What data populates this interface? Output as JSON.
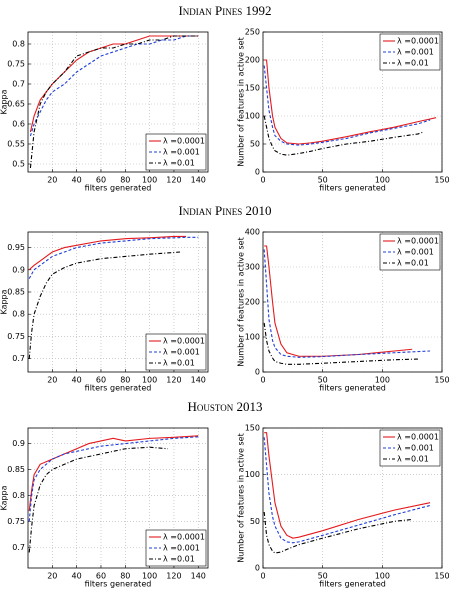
{
  "headings": [
    "Indian Pines 1992",
    "Indian Pines 2010",
    "Houston 2013"
  ],
  "chart_data": [
    {
      "type": "line",
      "x_label": "filters generated",
      "y_label": "Kappa",
      "xlim": [
        0,
        148
      ],
      "ylim": [
        0.48,
        0.83
      ],
      "xticks": [
        20,
        40,
        60,
        80,
        100,
        120,
        140
      ],
      "yticks": [
        0.5,
        0.55,
        0.6,
        0.65,
        0.7,
        0.75,
        0.8
      ],
      "grid": true,
      "legend": "lower-right",
      "series": [
        {
          "name": "λ =0.0001",
          "color": "#e41a1c",
          "dash": "solid",
          "x": [
            2,
            5,
            10,
            15,
            20,
            30,
            40,
            50,
            60,
            70,
            80,
            90,
            100,
            110,
            120,
            130,
            140
          ],
          "values": [
            0.58,
            0.62,
            0.66,
            0.68,
            0.7,
            0.73,
            0.76,
            0.78,
            0.79,
            0.8,
            0.8,
            0.81,
            0.82,
            0.82,
            0.82,
            0.82,
            0.82
          ]
        },
        {
          "name": "λ =0.001",
          "color": "#1f3fd8",
          "dash": "dashed",
          "x": [
            2,
            5,
            10,
            15,
            20,
            30,
            40,
            50,
            60,
            70,
            80,
            90,
            100,
            110,
            120,
            130,
            140
          ],
          "values": [
            0.57,
            0.6,
            0.63,
            0.66,
            0.68,
            0.7,
            0.73,
            0.75,
            0.77,
            0.78,
            0.79,
            0.8,
            0.8,
            0.81,
            0.81,
            0.82,
            0.82
          ]
        },
        {
          "name": "λ =0.01",
          "color": "#000000",
          "dash": "dashdot",
          "x": [
            2,
            5,
            10,
            15,
            20,
            30,
            40,
            50,
            60,
            70,
            80,
            90,
            100,
            110,
            120,
            130,
            140
          ],
          "values": [
            0.49,
            0.58,
            0.65,
            0.68,
            0.7,
            0.73,
            0.77,
            0.78,
            0.79,
            0.79,
            0.8,
            0.8,
            0.81,
            0.81,
            0.82,
            0.82,
            0.82
          ]
        }
      ]
    },
    {
      "type": "line",
      "x_label": "filters generated",
      "y_label": "Number of features in active set",
      "xlim": [
        0,
        150
      ],
      "ylim": [
        0,
        250
      ],
      "xticks": [
        0,
        50,
        100,
        150
      ],
      "yticks": [
        0,
        50,
        100,
        150,
        200,
        250
      ],
      "grid": true,
      "legend": "upper-right",
      "series": [
        {
          "name": "λ =0.0001",
          "color": "#e41a1c",
          "dash": "solid",
          "x": [
            1,
            3,
            5,
            8,
            10,
            15,
            20,
            30,
            40,
            50,
            70,
            90,
            110,
            130,
            145
          ],
          "values": [
            200,
            200,
            150,
            100,
            80,
            60,
            52,
            50,
            52,
            55,
            63,
            72,
            80,
            90,
            97
          ]
        },
        {
          "name": "λ =0.001",
          "color": "#1f3fd8",
          "dash": "dashed",
          "x": [
            1,
            3,
            5,
            8,
            10,
            15,
            20,
            30,
            40,
            50,
            70,
            90,
            110,
            130,
            140
          ],
          "values": [
            190,
            150,
            110,
            80,
            65,
            55,
            50,
            48,
            50,
            53,
            60,
            70,
            78,
            86,
            93
          ]
        },
        {
          "name": "λ =0.01",
          "color": "#000000",
          "dash": "dashdot",
          "x": [
            1,
            3,
            5,
            8,
            10,
            15,
            20,
            30,
            40,
            50,
            70,
            90,
            110,
            130,
            135
          ],
          "values": [
            100,
            80,
            60,
            45,
            38,
            32,
            30,
            33,
            37,
            42,
            50,
            55,
            62,
            68,
            72
          ]
        }
      ]
    },
    {
      "type": "line",
      "x_label": "filters generated",
      "y_label": "Kappa",
      "xlim": [
        0,
        148
      ],
      "ylim": [
        0.67,
        0.985
      ],
      "xticks": [
        20,
        40,
        60,
        80,
        100,
        120,
        140
      ],
      "yticks": [
        0.7,
        0.75,
        0.8,
        0.85,
        0.9,
        0.95
      ],
      "grid": true,
      "legend": "lower-right",
      "series": [
        {
          "name": "λ =0.0001",
          "color": "#e41a1c",
          "dash": "solid",
          "x": [
            1,
            5,
            10,
            20,
            30,
            40,
            60,
            80,
            100,
            120,
            130
          ],
          "values": [
            0.9,
            0.91,
            0.92,
            0.94,
            0.95,
            0.955,
            0.965,
            0.97,
            0.972,
            0.975,
            0.975
          ]
        },
        {
          "name": "λ =0.001",
          "color": "#1f3fd8",
          "dash": "dashed",
          "x": [
            1,
            5,
            10,
            20,
            30,
            40,
            60,
            80,
            100,
            120,
            130,
            140
          ],
          "values": [
            0.88,
            0.9,
            0.91,
            0.93,
            0.94,
            0.95,
            0.96,
            0.965,
            0.97,
            0.972,
            0.973,
            0.973
          ]
        },
        {
          "name": "λ =0.01",
          "color": "#000000",
          "dash": "dashdot",
          "x": [
            1,
            3,
            5,
            10,
            15,
            20,
            30,
            40,
            60,
            80,
            100,
            125
          ],
          "values": [
            0.7,
            0.76,
            0.8,
            0.84,
            0.87,
            0.89,
            0.905,
            0.915,
            0.925,
            0.93,
            0.935,
            0.94
          ]
        }
      ]
    },
    {
      "type": "line",
      "x_label": "filters generated",
      "y_label": "Number of features in active set",
      "xlim": [
        0,
        150
      ],
      "ylim": [
        0,
        400
      ],
      "xticks": [
        0,
        50,
        100,
        150
      ],
      "yticks": [
        0,
        100,
        200,
        300,
        400
      ],
      "grid": true,
      "legend": "upper-right",
      "series": [
        {
          "name": "λ =0.0001",
          "color": "#e41a1c",
          "dash": "solid",
          "x": [
            1,
            3,
            5,
            8,
            10,
            15,
            20,
            30,
            50,
            80,
            110,
            125
          ],
          "values": [
            360,
            360,
            300,
            200,
            140,
            80,
            55,
            45,
            45,
            50,
            60,
            65
          ]
        },
        {
          "name": "λ =0.001",
          "color": "#1f3fd8",
          "dash": "dashed",
          "x": [
            1,
            3,
            5,
            8,
            10,
            15,
            20,
            30,
            50,
            80,
            110,
            140
          ],
          "values": [
            350,
            250,
            150,
            90,
            70,
            50,
            45,
            42,
            44,
            50,
            55,
            60
          ]
        },
        {
          "name": "λ =0.01",
          "color": "#000000",
          "dash": "dashdot",
          "x": [
            1,
            3,
            5,
            8,
            10,
            15,
            20,
            30,
            50,
            80,
            110,
            130
          ],
          "values": [
            140,
            90,
            60,
            40,
            30,
            25,
            22,
            22,
            25,
            30,
            35,
            37
          ]
        }
      ]
    },
    {
      "type": "line",
      "x_label": "filters generated",
      "y_label": "Kappa",
      "xlim": [
        0,
        148
      ],
      "ylim": [
        0.66,
        0.93
      ],
      "xticks": [
        20,
        40,
        60,
        80,
        100,
        120,
        140
      ],
      "yticks": [
        0.7,
        0.75,
        0.8,
        0.85,
        0.9
      ],
      "grid": true,
      "legend": "lower-right",
      "series": [
        {
          "name": "λ =0.0001",
          "color": "#e41a1c",
          "dash": "solid",
          "x": [
            1,
            3,
            5,
            10,
            20,
            30,
            40,
            50,
            60,
            70,
            80,
            100,
            120,
            140
          ],
          "values": [
            0.77,
            0.81,
            0.84,
            0.86,
            0.87,
            0.88,
            0.89,
            0.9,
            0.905,
            0.91,
            0.905,
            0.91,
            0.912,
            0.915
          ]
        },
        {
          "name": "λ =0.001",
          "color": "#1f3fd8",
          "dash": "dashed",
          "x": [
            1,
            3,
            5,
            10,
            20,
            30,
            40,
            50,
            60,
            80,
            100,
            120,
            140
          ],
          "values": [
            0.75,
            0.8,
            0.83,
            0.85,
            0.87,
            0.88,
            0.885,
            0.89,
            0.895,
            0.9,
            0.905,
            0.91,
            0.913
          ]
        },
        {
          "name": "λ =0.01",
          "color": "#000000",
          "dash": "dashdot",
          "x": [
            1,
            3,
            5,
            10,
            15,
            20,
            30,
            40,
            50,
            60,
            80,
            100,
            115
          ],
          "values": [
            0.69,
            0.74,
            0.78,
            0.82,
            0.84,
            0.85,
            0.86,
            0.87,
            0.875,
            0.88,
            0.89,
            0.893,
            0.89
          ]
        }
      ]
    },
    {
      "type": "line",
      "x_label": "filters generated",
      "y_label": "Number of features in active set",
      "xlim": [
        0,
        150
      ],
      "ylim": [
        0,
        150
      ],
      "xticks": [
        0,
        50,
        100,
        150
      ],
      "yticks": [
        0,
        50,
        100,
        150
      ],
      "grid": true,
      "legend": "upper-right",
      "series": [
        {
          "name": "λ =0.0001",
          "color": "#e41a1c",
          "dash": "solid",
          "x": [
            1,
            3,
            5,
            8,
            10,
            15,
            20,
            25,
            30,
            50,
            80,
            110,
            140
          ],
          "values": [
            145,
            145,
            120,
            90,
            70,
            45,
            35,
            32,
            33,
            40,
            52,
            62,
            70
          ]
        },
        {
          "name": "λ =0.001",
          "color": "#1f3fd8",
          "dash": "dashed",
          "x": [
            1,
            3,
            5,
            8,
            10,
            15,
            20,
            25,
            30,
            50,
            80,
            110,
            140
          ],
          "values": [
            140,
            110,
            80,
            55,
            45,
            32,
            28,
            27,
            28,
            35,
            46,
            57,
            67
          ]
        },
        {
          "name": "λ =0.01",
          "color": "#000000",
          "dash": "dashdot",
          "x": [
            1,
            3,
            5,
            8,
            10,
            15,
            20,
            30,
            50,
            80,
            110,
            125
          ],
          "values": [
            60,
            35,
            25,
            18,
            16,
            17,
            20,
            25,
            32,
            42,
            50,
            52
          ]
        }
      ]
    }
  ]
}
